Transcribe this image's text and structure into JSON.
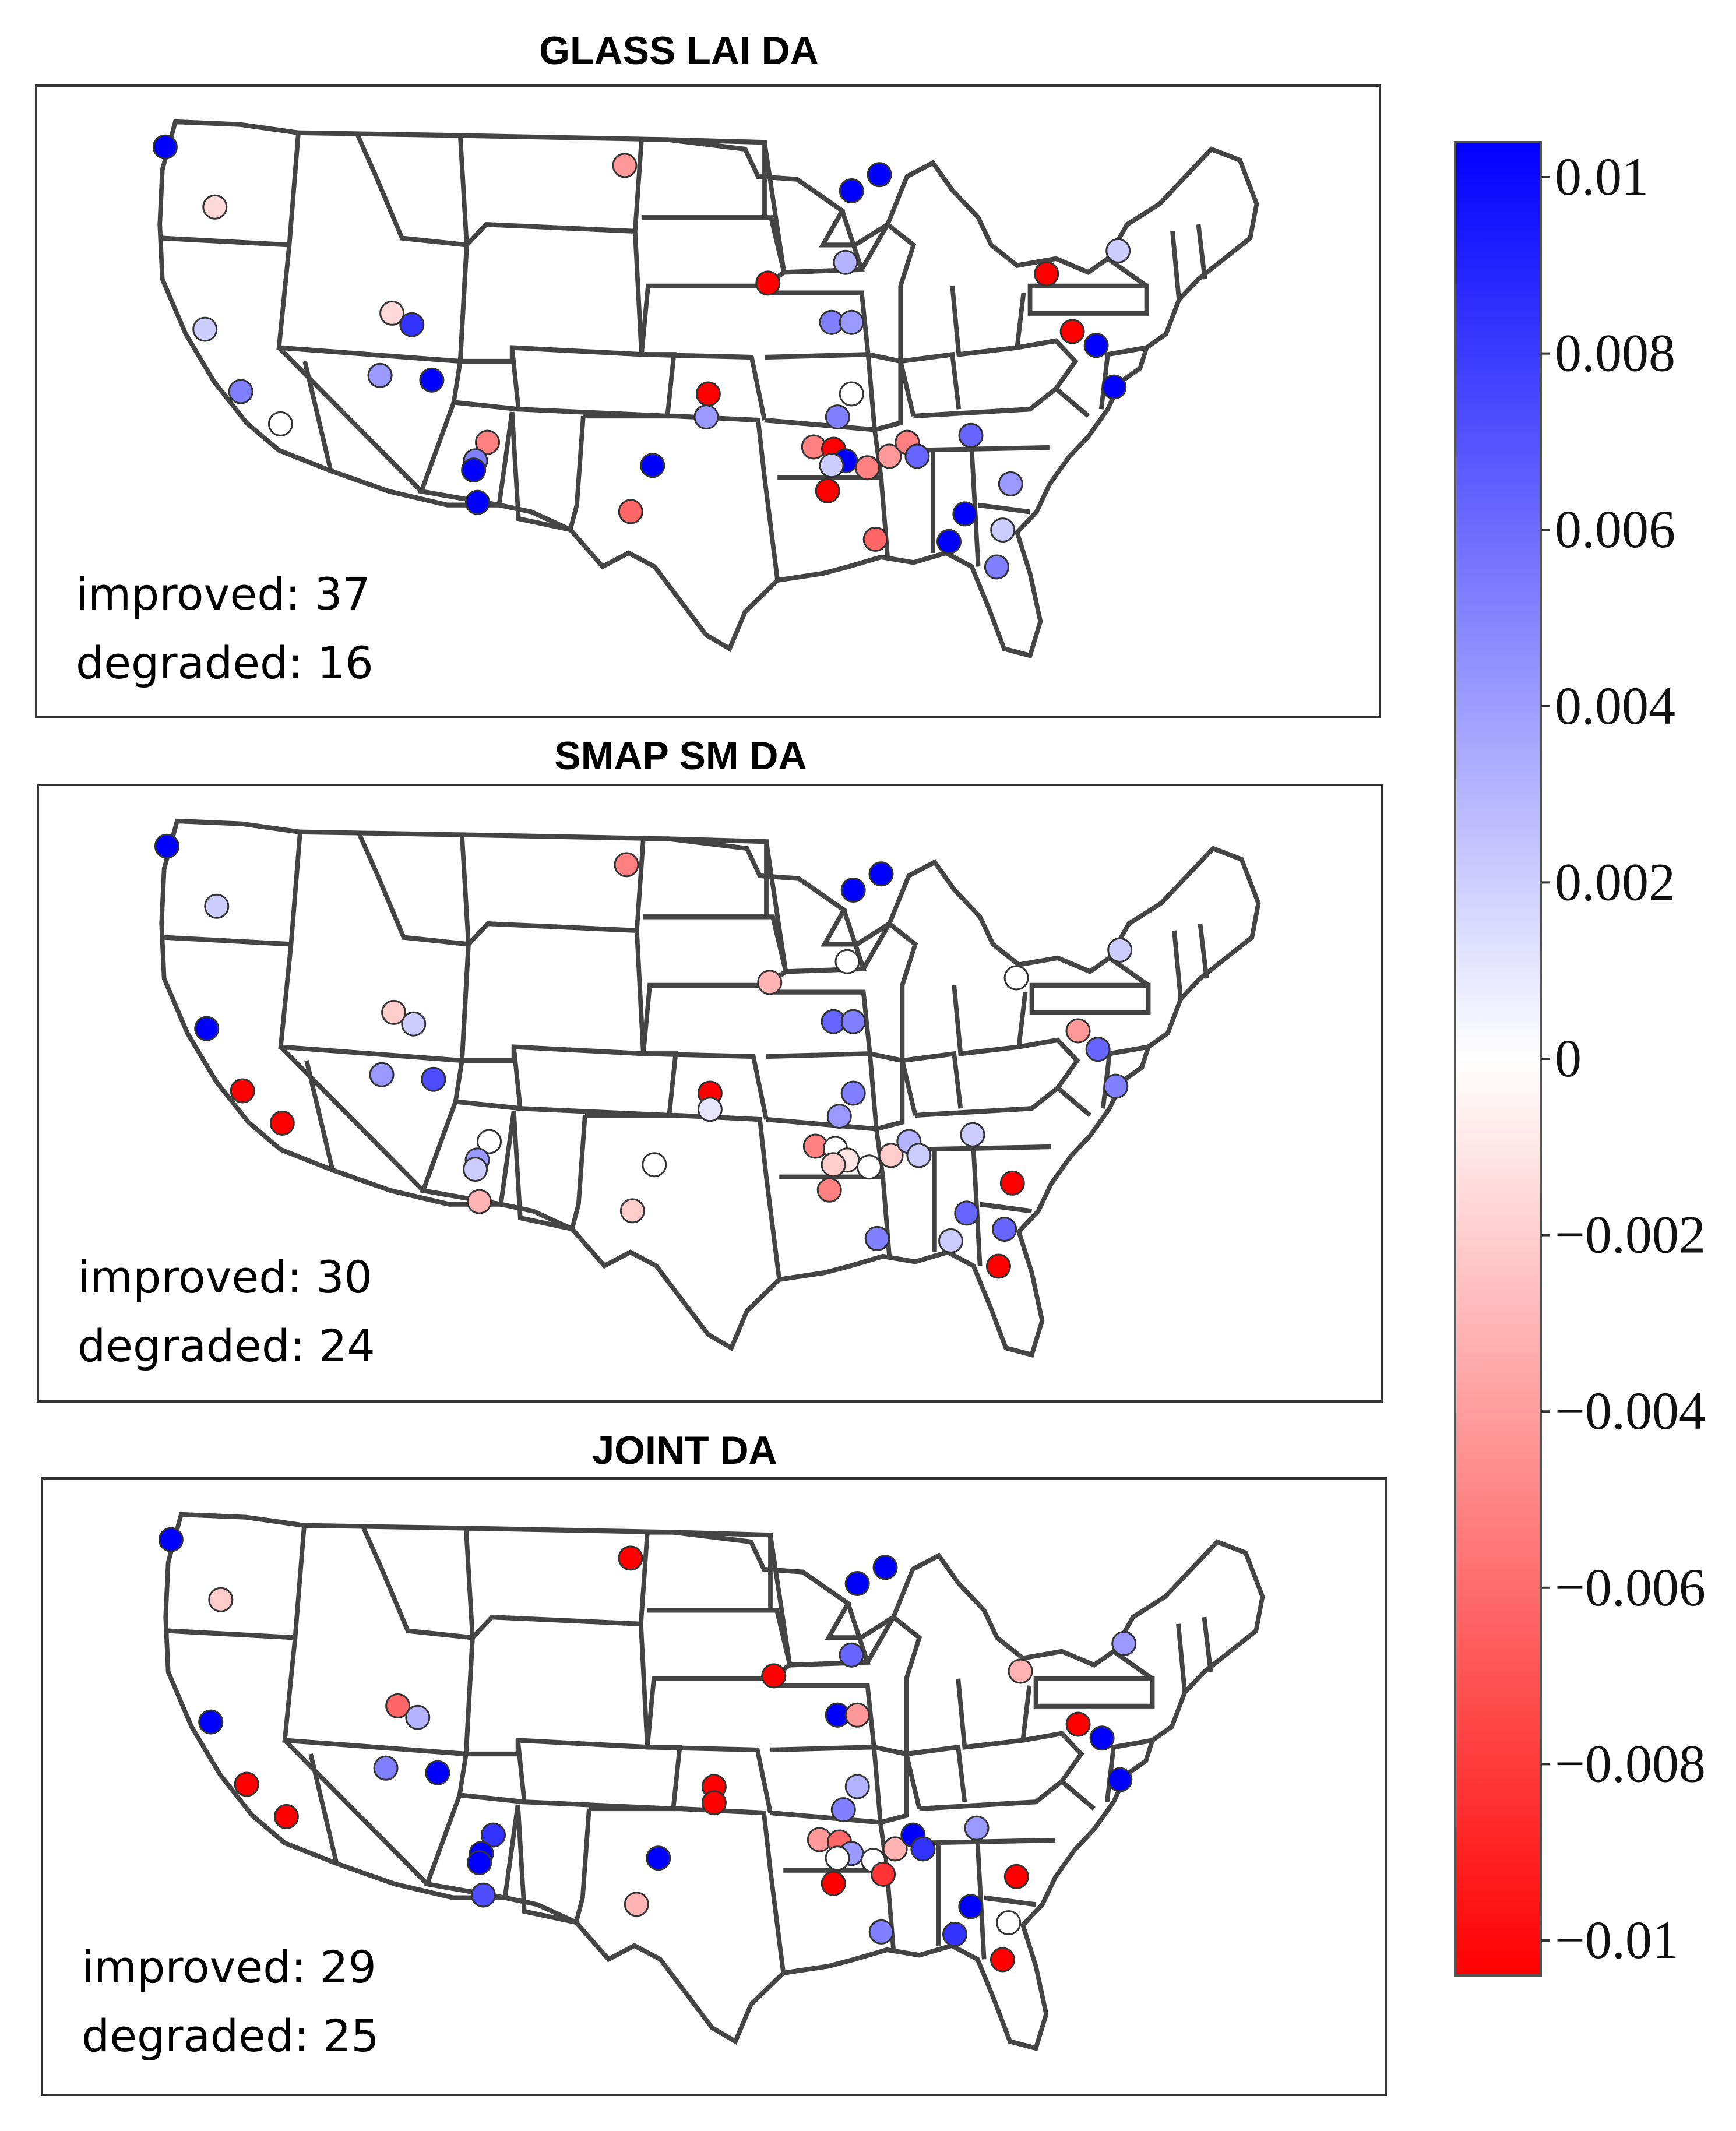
{
  "chart_data": [
    {
      "type": "scatter",
      "title": "GLASS LAI DA",
      "annotations": {
        "improved": "improved: 37",
        "degraded": "degraded: 16"
      },
      "colorbar": {
        "min": -0.01,
        "max": 0.01
      },
      "sites": [
        {
          "lon": -123.2,
          "lat": 47.6,
          "value": 0.01
        },
        {
          "lon": -120.7,
          "lat": 45.0,
          "value": -0.0015
        },
        {
          "lon": -100.1,
          "lat": 46.8,
          "value": -0.004
        },
        {
          "lon": -87.3,
          "lat": 46.4,
          "value": 0.01
        },
        {
          "lon": -88.7,
          "lat": 45.7,
          "value": 0.01
        },
        {
          "lon": -89.0,
          "lat": 42.6,
          "value": 0.003
        },
        {
          "lon": -92.9,
          "lat": 41.7,
          "value": -0.01
        },
        {
          "lon": -89.7,
          "lat": 40.0,
          "value": 0.005
        },
        {
          "lon": -88.7,
          "lat": 40.0,
          "value": 0.004
        },
        {
          "lon": -78.9,
          "lat": 42.1,
          "value": -0.01
        },
        {
          "lon": -75.3,
          "lat": 43.1,
          "value": 0.002
        },
        {
          "lon": -77.6,
          "lat": 39.6,
          "value": -0.01
        },
        {
          "lon": -76.4,
          "lat": 39.0,
          "value": 0.01
        },
        {
          "lon": -75.5,
          "lat": 37.2,
          "value": 0.01
        },
        {
          "lon": -121.2,
          "lat": 39.7,
          "value": 0.002
        },
        {
          "lon": -119.4,
          "lat": 37.0,
          "value": 0.005
        },
        {
          "lon": -117.4,
          "lat": 35.6,
          "value": 0.0
        },
        {
          "lon": -111.8,
          "lat": 40.4,
          "value": -0.0015
        },
        {
          "lon": -110.8,
          "lat": 39.9,
          "value": 0.008
        },
        {
          "lon": -112.4,
          "lat": 37.7,
          "value": 0.004
        },
        {
          "lon": -109.8,
          "lat": 37.5,
          "value": 0.01
        },
        {
          "lon": -107.0,
          "lat": 34.8,
          "value": -0.005
        },
        {
          "lon": -107.6,
          "lat": 34.0,
          "value": 0.005
        },
        {
          "lon": -107.7,
          "lat": 33.6,
          "value": 0.01
        },
        {
          "lon": -107.5,
          "lat": 32.2,
          "value": 0.01
        },
        {
          "lon": -98.7,
          "lat": 33.8,
          "value": 0.01
        },
        {
          "lon": -99.8,
          "lat": 31.8,
          "value": -0.006
        },
        {
          "lon": -95.9,
          "lat": 36.9,
          "value": -0.01
        },
        {
          "lon": -96.0,
          "lat": 35.9,
          "value": 0.004
        },
        {
          "lon": -88.7,
          "lat": 36.9,
          "value": 0.0
        },
        {
          "lon": -89.4,
          "lat": 35.9,
          "value": 0.005
        },
        {
          "lon": -90.6,
          "lat": 34.6,
          "value": -0.005
        },
        {
          "lon": -89.6,
          "lat": 34.5,
          "value": -0.01
        },
        {
          "lon": -89.0,
          "lat": 34.0,
          "value": 0.01
        },
        {
          "lon": -89.7,
          "lat": 33.8,
          "value": 0.002
        },
        {
          "lon": -87.9,
          "lat": 33.7,
          "value": -0.005
        },
        {
          "lon": -86.8,
          "lat": 34.2,
          "value": -0.004
        },
        {
          "lon": -85.9,
          "lat": 34.8,
          "value": -0.005
        },
        {
          "lon": -85.4,
          "lat": 34.2,
          "value": 0.006
        },
        {
          "lon": -89.9,
          "lat": 32.7,
          "value": -0.01
        },
        {
          "lon": -82.7,
          "lat": 35.1,
          "value": 0.006
        },
        {
          "lon": -80.7,
          "lat": 33.0,
          "value": 0.004
        },
        {
          "lon": -83.0,
          "lat": 31.7,
          "value": 0.01
        },
        {
          "lon": -81.1,
          "lat": 31.0,
          "value": 0.002
        },
        {
          "lon": -87.5,
          "lat": 30.6,
          "value": -0.006
        },
        {
          "lon": -83.8,
          "lat": 30.5,
          "value": 0.01
        },
        {
          "lon": -81.4,
          "lat": 29.4,
          "value": 0.005
        }
      ]
    },
    {
      "type": "scatter",
      "title": "SMAP SM DA",
      "annotations": {
        "improved": "improved: 30",
        "degraded": "degraded: 24"
      },
      "colorbar": {
        "min": -0.01,
        "max": 0.01
      },
      "sites": [
        {
          "lon": -123.2,
          "lat": 47.6,
          "value": 0.01
        },
        {
          "lon": -120.7,
          "lat": 45.0,
          "value": 0.002
        },
        {
          "lon": -100.1,
          "lat": 46.8,
          "value": -0.005
        },
        {
          "lon": -87.3,
          "lat": 46.4,
          "value": 0.01
        },
        {
          "lon": -88.7,
          "lat": 45.7,
          "value": 0.01
        },
        {
          "lon": -89.0,
          "lat": 42.6,
          "value": 0.0
        },
        {
          "lon": -92.9,
          "lat": 41.7,
          "value": -0.003
        },
        {
          "lon": -89.7,
          "lat": 40.0,
          "value": 0.006
        },
        {
          "lon": -88.7,
          "lat": 40.0,
          "value": 0.005
        },
        {
          "lon": -80.5,
          "lat": 41.9,
          "value": 0.0
        },
        {
          "lon": -75.3,
          "lat": 43.1,
          "value": 0.002
        },
        {
          "lon": -77.4,
          "lat": 39.6,
          "value": -0.004
        },
        {
          "lon": -76.4,
          "lat": 38.8,
          "value": 0.006
        },
        {
          "lon": -75.5,
          "lat": 37.2,
          "value": 0.005
        },
        {
          "lon": -121.2,
          "lat": 39.7,
          "value": 0.01
        },
        {
          "lon": -119.4,
          "lat": 37.0,
          "value": -0.01
        },
        {
          "lon": -117.4,
          "lat": 35.6,
          "value": -0.01
        },
        {
          "lon": -111.8,
          "lat": 40.4,
          "value": -0.002
        },
        {
          "lon": -110.8,
          "lat": 39.9,
          "value": 0.002
        },
        {
          "lon": -112.4,
          "lat": 37.7,
          "value": 0.004
        },
        {
          "lon": -109.8,
          "lat": 37.5,
          "value": 0.007
        },
        {
          "lon": -107.0,
          "lat": 34.8,
          "value": 0.0
        },
        {
          "lon": -107.6,
          "lat": 34.0,
          "value": 0.004
        },
        {
          "lon": -107.7,
          "lat": 33.6,
          "value": 0.002
        },
        {
          "lon": -107.5,
          "lat": 32.2,
          "value": -0.003
        },
        {
          "lon": -98.7,
          "lat": 33.8,
          "value": 0.0
        },
        {
          "lon": -99.8,
          "lat": 31.8,
          "value": -0.002
        },
        {
          "lon": -95.9,
          "lat": 36.9,
          "value": -0.01
        },
        {
          "lon": -95.9,
          "lat": 36.2,
          "value": 0.001
        },
        {
          "lon": -88.7,
          "lat": 36.9,
          "value": 0.005
        },
        {
          "lon": -89.4,
          "lat": 35.9,
          "value": 0.004
        },
        {
          "lon": -90.6,
          "lat": 34.6,
          "value": -0.005
        },
        {
          "lon": -89.6,
          "lat": 34.5,
          "value": 0.0
        },
        {
          "lon": -89.0,
          "lat": 34.0,
          "value": -0.001
        },
        {
          "lon": -89.7,
          "lat": 33.8,
          "value": -0.002
        },
        {
          "lon": -87.9,
          "lat": 33.7,
          "value": 0.0
        },
        {
          "lon": -86.8,
          "lat": 34.2,
          "value": -0.002
        },
        {
          "lon": -85.9,
          "lat": 34.8,
          "value": 0.003
        },
        {
          "lon": -85.4,
          "lat": 34.2,
          "value": 0.002
        },
        {
          "lon": -89.9,
          "lat": 32.7,
          "value": -0.005
        },
        {
          "lon": -82.7,
          "lat": 35.1,
          "value": 0.002
        },
        {
          "lon": -80.7,
          "lat": 33.0,
          "value": -0.01
        },
        {
          "lon": -83.0,
          "lat": 31.7,
          "value": 0.006
        },
        {
          "lon": -81.1,
          "lat": 31.0,
          "value": 0.006
        },
        {
          "lon": -87.5,
          "lat": 30.6,
          "value": 0.005
        },
        {
          "lon": -83.8,
          "lat": 30.5,
          "value": 0.002
        },
        {
          "lon": -81.4,
          "lat": 29.4,
          "value": -0.01
        }
      ]
    },
    {
      "type": "scatter",
      "title": "JOINT DA",
      "annotations": {
        "improved": "improved: 29",
        "degraded": "degraded: 25"
      },
      "colorbar": {
        "min": -0.01,
        "max": 0.01
      },
      "sites": [
        {
          "lon": -123.2,
          "lat": 47.6,
          "value": 0.01
        },
        {
          "lon": -120.7,
          "lat": 45.0,
          "value": -0.002
        },
        {
          "lon": -100.1,
          "lat": 46.8,
          "value": -0.01
        },
        {
          "lon": -87.3,
          "lat": 46.4,
          "value": 0.01
        },
        {
          "lon": -88.7,
          "lat": 45.7,
          "value": 0.01
        },
        {
          "lon": -89.0,
          "lat": 42.6,
          "value": 0.006
        },
        {
          "lon": -92.9,
          "lat": 41.7,
          "value": -0.01
        },
        {
          "lon": -89.7,
          "lat": 40.0,
          "value": 0.01
        },
        {
          "lon": -88.7,
          "lat": 40.0,
          "value": -0.004
        },
        {
          "lon": -80.5,
          "lat": 41.9,
          "value": -0.003
        },
        {
          "lon": -75.3,
          "lat": 43.1,
          "value": 0.004
        },
        {
          "lon": -77.6,
          "lat": 39.6,
          "value": -0.01
        },
        {
          "lon": -76.4,
          "lat": 39.0,
          "value": 0.01
        },
        {
          "lon": -75.5,
          "lat": 37.2,
          "value": 0.01
        },
        {
          "lon": -121.2,
          "lat": 39.7,
          "value": 0.01
        },
        {
          "lon": -119.4,
          "lat": 37.0,
          "value": -0.01
        },
        {
          "lon": -117.4,
          "lat": 35.6,
          "value": -0.01
        },
        {
          "lon": -111.8,
          "lat": 40.4,
          "value": -0.006
        },
        {
          "lon": -110.8,
          "lat": 39.9,
          "value": 0.003
        },
        {
          "lon": -112.4,
          "lat": 37.7,
          "value": 0.005
        },
        {
          "lon": -109.8,
          "lat": 37.5,
          "value": 0.01
        },
        {
          "lon": -107.0,
          "lat": 34.8,
          "value": 0.008
        },
        {
          "lon": -107.6,
          "lat": 34.0,
          "value": 0.01
        },
        {
          "lon": -107.7,
          "lat": 33.6,
          "value": 0.01
        },
        {
          "lon": -107.5,
          "lat": 32.2,
          "value": 0.007
        },
        {
          "lon": -98.7,
          "lat": 33.8,
          "value": 0.01
        },
        {
          "lon": -99.8,
          "lat": 31.8,
          "value": -0.003
        },
        {
          "lon": -95.9,
          "lat": 36.9,
          "value": -0.01
        },
        {
          "lon": -95.9,
          "lat": 36.2,
          "value": -0.01
        },
        {
          "lon": -88.7,
          "lat": 36.9,
          "value": 0.003
        },
        {
          "lon": -89.4,
          "lat": 35.9,
          "value": 0.005
        },
        {
          "lon": -90.6,
          "lat": 34.6,
          "value": -0.004
        },
        {
          "lon": -89.6,
          "lat": 34.5,
          "value": -0.006
        },
        {
          "lon": -89.0,
          "lat": 34.0,
          "value": 0.004
        },
        {
          "lon": -89.7,
          "lat": 33.8,
          "value": 0.0
        },
        {
          "lon": -87.9,
          "lat": 33.7,
          "value": 0.0
        },
        {
          "lon": -86.8,
          "lat": 34.2,
          "value": -0.003
        },
        {
          "lon": -85.9,
          "lat": 34.8,
          "value": 0.01
        },
        {
          "lon": -85.4,
          "lat": 34.2,
          "value": 0.008
        },
        {
          "lon": -89.9,
          "lat": 32.7,
          "value": -0.01
        },
        {
          "lon": -87.4,
          "lat": 33.1,
          "value": -0.008
        },
        {
          "lon": -82.7,
          "lat": 35.1,
          "value": 0.004
        },
        {
          "lon": -80.7,
          "lat": 33.0,
          "value": -0.01
        },
        {
          "lon": -83.0,
          "lat": 31.7,
          "value": 0.01
        },
        {
          "lon": -81.1,
          "lat": 31.0,
          "value": 0.0
        },
        {
          "lon": -87.5,
          "lat": 30.6,
          "value": 0.005
        },
        {
          "lon": -83.8,
          "lat": 30.5,
          "value": 0.008
        },
        {
          "lon": -81.4,
          "lat": 29.4,
          "value": -0.01
        }
      ]
    }
  ],
  "colorbar": {
    "min": -0.01,
    "max": 0.01,
    "ticks": [
      {
        "value": 0.01,
        "label": "0.01"
      },
      {
        "value": 0.008,
        "label": "0.008"
      },
      {
        "value": 0.006,
        "label": "0.006"
      },
      {
        "value": 0.004,
        "label": "0.004"
      },
      {
        "value": 0.002,
        "label": "0.002"
      },
      {
        "value": 0.0,
        "label": "0"
      },
      {
        "value": -0.002,
        "label": "−0.002"
      },
      {
        "value": -0.004,
        "label": "−0.004"
      },
      {
        "value": -0.006,
        "label": "−0.006"
      },
      {
        "value": -0.008,
        "label": "−0.008"
      },
      {
        "value": -0.01,
        "label": "−0.01"
      }
    ],
    "colors": {
      "low": "#ff0000",
      "mid": "#ffffff",
      "high": "#0000ff"
    }
  }
}
